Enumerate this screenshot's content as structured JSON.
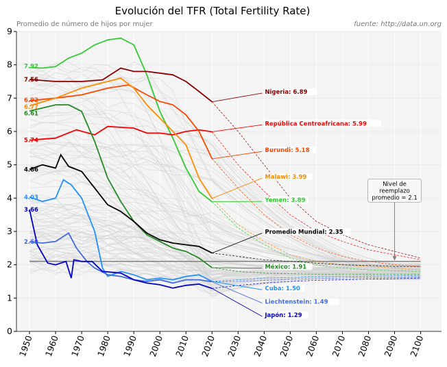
{
  "chart_data": {
    "type": "line",
    "title": "Evolución del TFR (Total Fertility Rate)",
    "subtitle": "Promedio de número de hijos por mujer",
    "source": "fuente: http://data.un.org",
    "xlim": [
      1945,
      2108
    ],
    "ylim": [
      0,
      9
    ],
    "x_ticks": [
      "1950",
      "1960",
      "1970",
      "1980",
      "1990",
      "2000",
      "2010",
      "2020",
      "2030",
      "2040",
      "2050",
      "2060",
      "2070",
      "2080",
      "2090",
      "2100"
    ],
    "y_ticks": [
      "0",
      "1",
      "2",
      "3",
      "4",
      "5",
      "6",
      "7",
      "8",
      "9"
    ],
    "grid": true,
    "background_countries_color": "#d3d3d3",
    "replacement_level": {
      "value": 2.1,
      "label": "Nivel de\nreemplazo\npromedio = 2.1",
      "label_lines": [
        "Nivel de",
        "reemplazo",
        "promedio = 2.1"
      ],
      "color": "#808080"
    },
    "series": [
      {
        "name": "Yemen",
        "start_label": "7.92",
        "end_label": "Yemen: 3.89",
        "color": "#32cd32",
        "history": [
          [
            1950,
            7.92
          ],
          [
            1955,
            7.9
          ],
          [
            1960,
            7.95
          ],
          [
            1965,
            8.2
          ],
          [
            1970,
            8.35
          ],
          [
            1975,
            8.6
          ],
          [
            1980,
            8.75
          ],
          [
            1985,
            8.8
          ],
          [
            1990,
            8.6
          ],
          [
            1995,
            7.7
          ],
          [
            2000,
            6.6
          ],
          [
            2005,
            5.8
          ],
          [
            2010,
            4.9
          ],
          [
            2015,
            4.2
          ],
          [
            2020,
            3.89
          ]
        ],
        "projection": [
          [
            2020,
            3.89
          ],
          [
            2030,
            3.1
          ],
          [
            2040,
            2.6
          ],
          [
            2050,
            2.2
          ],
          [
            2060,
            2.0
          ],
          [
            2070,
            1.9
          ],
          [
            2080,
            1.85
          ],
          [
            2090,
            1.82
          ],
          [
            2100,
            1.8
          ]
        ]
      },
      {
        "name": "Nigeria",
        "start_label": "7.56",
        "end_label": "Nigeria: 6.89",
        "color": "#8b0000",
        "history": [
          [
            1950,
            7.56
          ],
          [
            1960,
            7.5
          ],
          [
            1970,
            7.5
          ],
          [
            1978,
            7.55
          ],
          [
            1985,
            7.9
          ],
          [
            1990,
            7.8
          ],
          [
            1995,
            7.8
          ],
          [
            2000,
            7.75
          ],
          [
            2005,
            7.7
          ],
          [
            2010,
            7.5
          ],
          [
            2015,
            7.2
          ],
          [
            2020,
            6.89
          ]
        ],
        "projection": [
          [
            2020,
            6.89
          ],
          [
            2030,
            6.0
          ],
          [
            2040,
            5.0
          ],
          [
            2050,
            4.0
          ],
          [
            2060,
            3.3
          ],
          [
            2070,
            2.9
          ],
          [
            2080,
            2.6
          ],
          [
            2090,
            2.4
          ],
          [
            2100,
            2.2
          ]
        ]
      },
      {
        "name": "República Centroafricana",
        "start_label": "5.74",
        "end_label": "República Centroafricana: 5.99",
        "color": "#ff0000",
        "history": [
          [
            1950,
            5.74
          ],
          [
            1960,
            5.8
          ],
          [
            1968,
            6.05
          ],
          [
            1975,
            5.9
          ],
          [
            1980,
            6.15
          ],
          [
            1990,
            6.1
          ],
          [
            1995,
            5.95
          ],
          [
            2000,
            5.95
          ],
          [
            2005,
            5.9
          ],
          [
            2010,
            6.0
          ],
          [
            2015,
            6.05
          ],
          [
            2020,
            5.99
          ]
        ],
        "projection": [
          [
            2020,
            5.99
          ],
          [
            2030,
            5.0
          ],
          [
            2040,
            4.2
          ],
          [
            2050,
            3.5
          ],
          [
            2060,
            3.0
          ],
          [
            2070,
            2.7
          ],
          [
            2080,
            2.45
          ],
          [
            2090,
            2.3
          ],
          [
            2100,
            2.15
          ]
        ]
      },
      {
        "name": "Burundi",
        "start_label": "6.92",
        "end_label": "Burundi: 5.18",
        "color": "#ff4500",
        "history": [
          [
            1950,
            6.92
          ],
          [
            1960,
            7.0
          ],
          [
            1970,
            7.1
          ],
          [
            1980,
            7.3
          ],
          [
            1988,
            7.4
          ],
          [
            1995,
            7.1
          ],
          [
            2000,
            6.9
          ],
          [
            2005,
            6.8
          ],
          [
            2010,
            6.5
          ],
          [
            2015,
            6.0
          ],
          [
            2020,
            5.18
          ]
        ],
        "projection": [
          [
            2020,
            5.18
          ],
          [
            2030,
            4.3
          ],
          [
            2040,
            3.5
          ],
          [
            2050,
            2.9
          ],
          [
            2060,
            2.5
          ],
          [
            2070,
            2.25
          ],
          [
            2080,
            2.1
          ],
          [
            2090,
            2.0
          ],
          [
            2100,
            1.95
          ]
        ]
      },
      {
        "name": "Malawi",
        "start_label": "6.77",
        "end_label": "Malawi: 3.99",
        "color": "#ff8c00",
        "history": [
          [
            1950,
            6.77
          ],
          [
            1960,
            7.0
          ],
          [
            1970,
            7.3
          ],
          [
            1980,
            7.5
          ],
          [
            1985,
            7.6
          ],
          [
            1990,
            7.3
          ],
          [
            1995,
            6.8
          ],
          [
            2000,
            6.4
          ],
          [
            2005,
            6.0
          ],
          [
            2010,
            5.6
          ],
          [
            2015,
            4.6
          ],
          [
            2020,
            3.99
          ]
        ],
        "projection": [
          [
            2020,
            3.99
          ],
          [
            2030,
            3.2
          ],
          [
            2040,
            2.7
          ],
          [
            2050,
            2.3
          ],
          [
            2060,
            2.1
          ],
          [
            2070,
            2.0
          ],
          [
            2080,
            1.95
          ],
          [
            2090,
            1.9
          ],
          [
            2100,
            1.85
          ]
        ]
      },
      {
        "name": "México",
        "start_label": "6.61",
        "end_label": "México: 1.91",
        "color": "#228b22",
        "history": [
          [
            1950,
            6.61
          ],
          [
            1960,
            6.8
          ],
          [
            1965,
            6.8
          ],
          [
            1970,
            6.6
          ],
          [
            1975,
            5.7
          ],
          [
            1980,
            4.6
          ],
          [
            1985,
            3.9
          ],
          [
            1990,
            3.3
          ],
          [
            1995,
            2.9
          ],
          [
            2000,
            2.7
          ],
          [
            2005,
            2.5
          ],
          [
            2010,
            2.4
          ],
          [
            2015,
            2.2
          ],
          [
            2020,
            1.91
          ]
        ],
        "projection": [
          [
            2020,
            1.91
          ],
          [
            2030,
            1.8
          ],
          [
            2040,
            1.75
          ],
          [
            2050,
            1.73
          ],
          [
            2060,
            1.72
          ],
          [
            2070,
            1.72
          ],
          [
            2080,
            1.72
          ],
          [
            2090,
            1.72
          ],
          [
            2100,
            1.72
          ]
        ]
      },
      {
        "name": "Promedio Mundial",
        "start_label": "4.86",
        "end_label": "Promedio Mundial: 2.35",
        "color": "#000000",
        "history": [
          [
            1950,
            4.86
          ],
          [
            1955,
            5.0
          ],
          [
            1960,
            4.9
          ],
          [
            1962,
            5.3
          ],
          [
            1965,
            4.95
          ],
          [
            1970,
            4.8
          ],
          [
            1975,
            4.3
          ],
          [
            1980,
            3.8
          ],
          [
            1985,
            3.6
          ],
          [
            1990,
            3.3
          ],
          [
            1995,
            2.95
          ],
          [
            2000,
            2.75
          ],
          [
            2005,
            2.65
          ],
          [
            2010,
            2.6
          ],
          [
            2015,
            2.55
          ],
          [
            2020,
            2.35
          ]
        ],
        "projection": [
          [
            2020,
            2.35
          ],
          [
            2030,
            2.25
          ],
          [
            2040,
            2.15
          ],
          [
            2050,
            2.1
          ],
          [
            2060,
            2.05
          ],
          [
            2070,
            2.0
          ],
          [
            2080,
            1.98
          ],
          [
            2090,
            1.95
          ],
          [
            2100,
            1.95
          ]
        ]
      },
      {
        "name": "Cuba",
        "start_label": "4.03",
        "end_label": "Cuba: 1.50",
        "color": "#1e90ff",
        "history": [
          [
            1950,
            4.03
          ],
          [
            1955,
            3.9
          ],
          [
            1960,
            4.0
          ],
          [
            1963,
            4.55
          ],
          [
            1966,
            4.4
          ],
          [
            1970,
            4.0
          ],
          [
            1975,
            3.0
          ],
          [
            1978,
            1.9
          ],
          [
            1980,
            1.65
          ],
          [
            1985,
            1.8
          ],
          [
            1990,
            1.7
          ],
          [
            1995,
            1.55
          ],
          [
            2000,
            1.6
          ],
          [
            2005,
            1.55
          ],
          [
            2010,
            1.65
          ],
          [
            2015,
            1.7
          ],
          [
            2020,
            1.5
          ]
        ],
        "projection": [
          [
            2020,
            1.5
          ],
          [
            2030,
            1.55
          ],
          [
            2040,
            1.6
          ],
          [
            2050,
            1.62
          ],
          [
            2060,
            1.64
          ],
          [
            2070,
            1.65
          ],
          [
            2080,
            1.66
          ],
          [
            2090,
            1.67
          ],
          [
            2100,
            1.68
          ]
        ]
      },
      {
        "name": "Liechtenstein",
        "start_label": "2.69",
        "end_label": "Liechtenstein: 1.49",
        "color": "#4169e1",
        "history": [
          [
            1950,
            2.69
          ],
          [
            1955,
            2.65
          ],
          [
            1960,
            2.7
          ],
          [
            1965,
            2.95
          ],
          [
            1968,
            2.5
          ],
          [
            1972,
            2.1
          ],
          [
            1975,
            1.9
          ],
          [
            1980,
            1.7
          ],
          [
            1985,
            1.65
          ],
          [
            1990,
            1.55
          ],
          [
            1995,
            1.5
          ],
          [
            2000,
            1.55
          ],
          [
            2005,
            1.45
          ],
          [
            2010,
            1.55
          ],
          [
            2015,
            1.55
          ],
          [
            2020,
            1.49
          ]
        ],
        "projection": [
          [
            2020,
            1.49
          ],
          [
            2030,
            1.5
          ],
          [
            2040,
            1.53
          ],
          [
            2050,
            1.56
          ],
          [
            2060,
            1.58
          ],
          [
            2070,
            1.6
          ],
          [
            2080,
            1.61
          ],
          [
            2090,
            1.62
          ],
          [
            2100,
            1.63
          ]
        ]
      },
      {
        "name": "Japón",
        "start_label": "3.66",
        "end_label": "Japón: 1.29",
        "color": "#0000cd",
        "history": [
          [
            1950,
            3.66
          ],
          [
            1953,
            2.6
          ],
          [
            1957,
            2.05
          ],
          [
            1960,
            2.0
          ],
          [
            1964,
            2.1
          ],
          [
            1966,
            1.6
          ],
          [
            1967,
            2.15
          ],
          [
            1970,
            2.1
          ],
          [
            1974,
            2.1
          ],
          [
            1978,
            1.8
          ],
          [
            1985,
            1.75
          ],
          [
            1990,
            1.55
          ],
          [
            1995,
            1.45
          ],
          [
            2000,
            1.4
          ],
          [
            2005,
            1.3
          ],
          [
            2010,
            1.38
          ],
          [
            2015,
            1.42
          ],
          [
            2020,
            1.29
          ]
        ],
        "projection": [
          [
            2020,
            1.29
          ],
          [
            2030,
            1.38
          ],
          [
            2040,
            1.45
          ],
          [
            2050,
            1.5
          ],
          [
            2060,
            1.53
          ],
          [
            2070,
            1.55
          ],
          [
            2080,
            1.57
          ],
          [
            2090,
            1.58
          ],
          [
            2100,
            1.6
          ]
        ]
      }
    ]
  }
}
